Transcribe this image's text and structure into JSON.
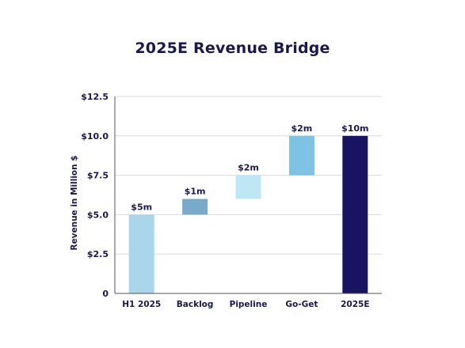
{
  "chart_data": {
    "type": "bar",
    "subtype": "waterfall",
    "title": "2025E Revenue Bridge",
    "xlabel": "",
    "ylabel": "Revenue in Million $",
    "ylim": [
      0,
      12.5
    ],
    "yticks": [
      0,
      2.5,
      5,
      7.5,
      10,
      12.5
    ],
    "ytick_labels": [
      "0",
      "$2.5",
      "$5.0",
      "$7.5",
      "$10.0",
      "$12.5"
    ],
    "grid": true,
    "categories": [
      "H1 2025",
      "Backlog",
      "Pipeline",
      "Go-Get",
      "2025E"
    ],
    "values": [
      5,
      1,
      1.5,
      2.5,
      10
    ],
    "bases": [
      0,
      5,
      6,
      7.5,
      0
    ],
    "data_labels": [
      "$5m",
      "$1m",
      "$2m",
      "$2m",
      "$10m"
    ],
    "colors": [
      "#a9d6ea",
      "#7aaac9",
      "#bfe6f5",
      "#7ec3e3",
      "#171462"
    ]
  }
}
